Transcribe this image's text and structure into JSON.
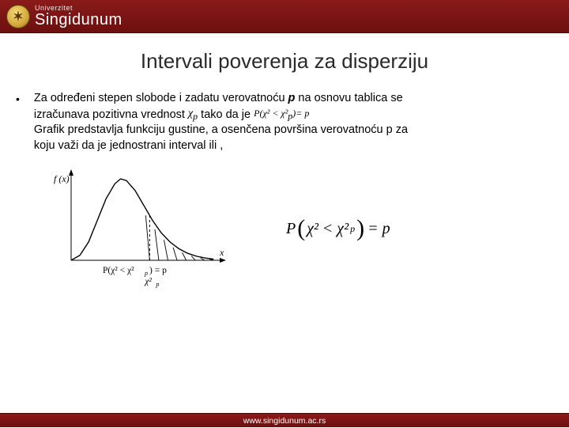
{
  "header": {
    "logo_letter": "✶",
    "uni_label": "Univerzitet",
    "uni_name": "Singidunum",
    "bg_gradient_top": "#8a1a1a",
    "bg_gradient_bottom": "#6d0f0f"
  },
  "title": "Intervali poverenja za disperziju",
  "body": {
    "line1_a": "Za određeni stepen slobode  i  zadatu verovatnoću  ",
    "line1_p": "p",
    "line1_b": "  na osnovu tablica se",
    "line2_a": "izračunava pozitivna  vrednost ",
    "line2_math1": "χ",
    "line2_math1_sub": "p",
    "line2_b": " tako da je ",
    "line2_formula_pre": "P",
    "line2_formula_inner": "χ² < χ²",
    "line2_formula_sub": "p",
    "line2_formula_eq": "= p",
    "line3": "Grafik predstavlja funkciju gustine, a osenčena površina verovatnoću p za",
    "line4": "koju važi da je                                               jednostrani interval ili ,"
  },
  "chart": {
    "type": "line",
    "x_label": "x",
    "y_label": "f (x)",
    "axis_color": "#000000",
    "curve_color": "#000000",
    "curve_width": 1.4,
    "hatch_color": "#000000",
    "xlim": [
      0,
      10
    ],
    "ylim": [
      0,
      1
    ],
    "curve_points": [
      [
        0.0,
        0.0
      ],
      [
        0.6,
        0.06
      ],
      [
        1.2,
        0.22
      ],
      [
        1.8,
        0.48
      ],
      [
        2.4,
        0.74
      ],
      [
        3.0,
        0.92
      ],
      [
        3.4,
        0.98
      ],
      [
        3.8,
        0.96
      ],
      [
        4.4,
        0.84
      ],
      [
        5.0,
        0.66
      ],
      [
        5.6,
        0.48
      ],
      [
        6.2,
        0.33
      ],
      [
        6.8,
        0.22
      ],
      [
        7.4,
        0.14
      ],
      [
        8.0,
        0.085
      ],
      [
        8.6,
        0.05
      ],
      [
        9.2,
        0.028
      ],
      [
        9.8,
        0.014
      ]
    ],
    "shade_x_start": 5.4,
    "shade_x_end": 9.8,
    "chi_marker_x": 5.4,
    "caption_formula": "P(χ² < χ²_p) = p",
    "caption_below": "χ²_p"
  },
  "right_formula": {
    "P": "P",
    "inner_left": "χ²",
    "lt": "<",
    "inner_right": "χ²",
    "sub": "p",
    "rhs": "= p"
  },
  "footer": {
    "text": "www.singidunum.ac.rs"
  },
  "colors": {
    "title": "#2a2a2a",
    "text": "#000000",
    "background": "#ffffff",
    "footer_text": "#ffffff"
  }
}
